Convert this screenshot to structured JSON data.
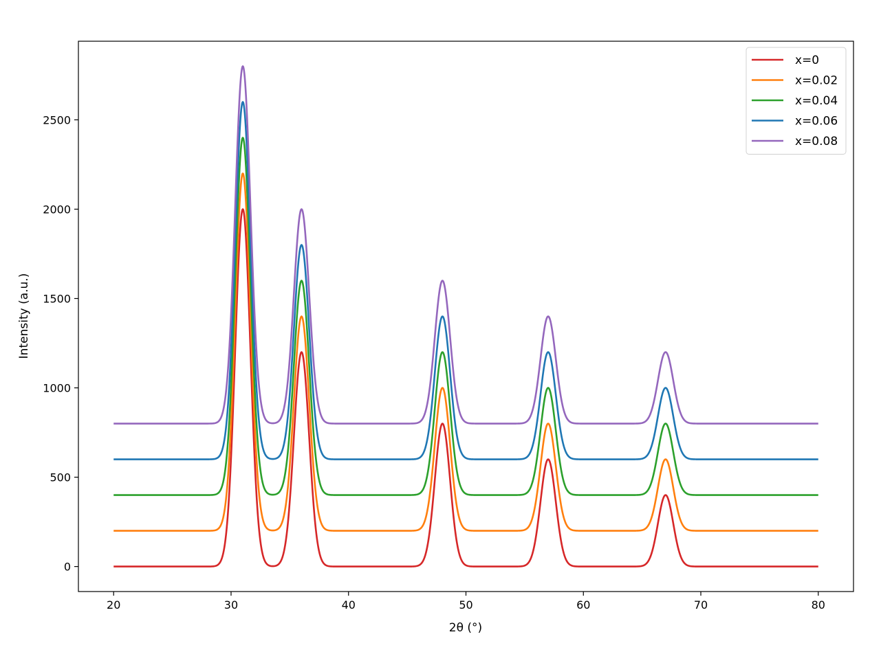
{
  "chart_data": {
    "type": "line",
    "title": "",
    "xlabel": "2θ (°)",
    "ylabel": "Intensity (a.u.)",
    "xlim": [
      17,
      83
    ],
    "ylim": [
      -140,
      2940
    ],
    "xticks": [
      20,
      30,
      40,
      50,
      60,
      70,
      80
    ],
    "yticks": [
      0,
      500,
      1000,
      1500,
      2000,
      2500
    ],
    "x_range": [
      20,
      80
    ],
    "grid": false,
    "legend_position": "top-right",
    "peak_positions": [
      31,
      36,
      48,
      57,
      67
    ],
    "series": [
      {
        "name": "x=0",
        "color": "#d62728",
        "baseline": 0,
        "peak_heights": [
          2000,
          1200,
          800,
          600,
          400
        ]
      },
      {
        "name": "x=0.02",
        "color": "#ff7f0e",
        "baseline": 200,
        "peak_heights": [
          2200,
          1400,
          1000,
          800,
          600
        ]
      },
      {
        "name": "x=0.04",
        "color": "#2ca02c",
        "baseline": 400,
        "peak_heights": [
          2400,
          1600,
          1200,
          1000,
          800
        ]
      },
      {
        "name": "x=0.06",
        "color": "#1f77b4",
        "baseline": 600,
        "peak_heights": [
          2600,
          1800,
          1400,
          1200,
          1000
        ]
      },
      {
        "name": "x=0.08",
        "color": "#9467bd",
        "baseline": 800,
        "peak_heights": [
          2800,
          2000,
          1600,
          1400,
          1200
        ]
      }
    ]
  }
}
